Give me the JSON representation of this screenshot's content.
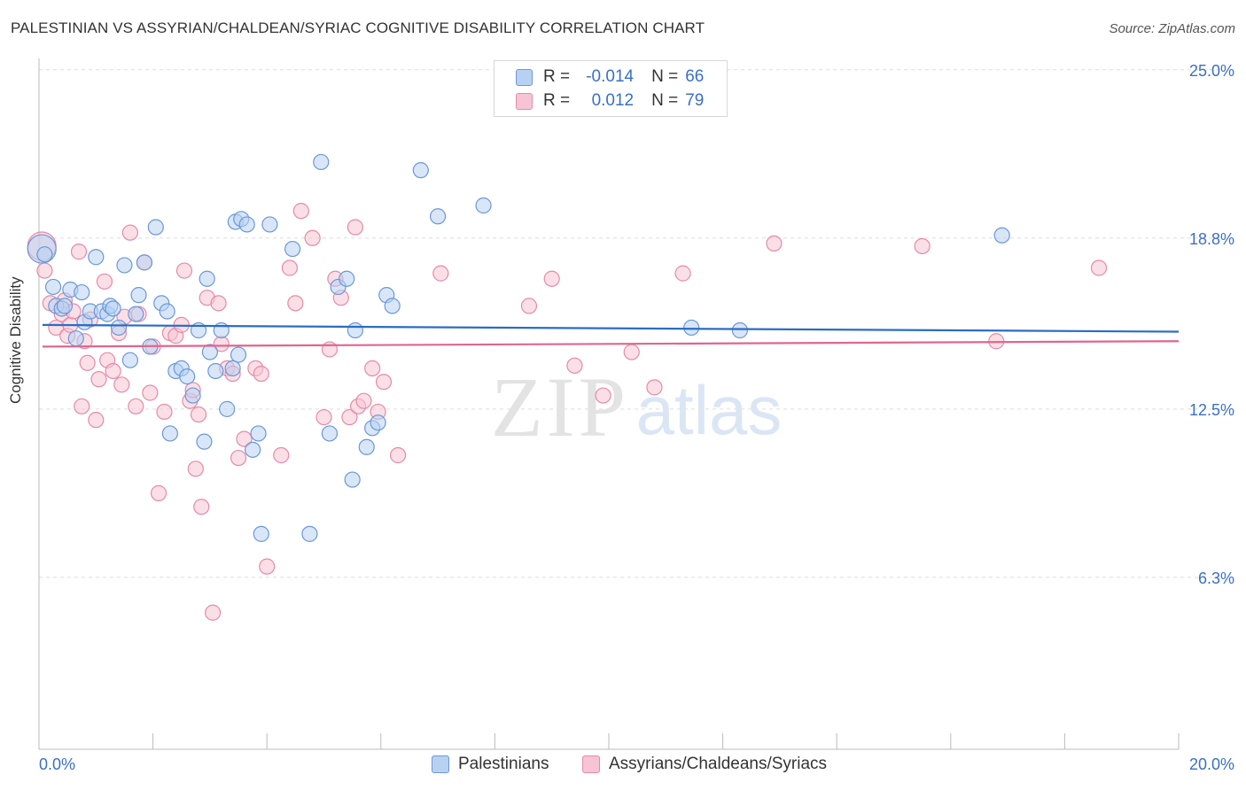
{
  "title": "PALESTINIAN VS ASSYRIAN/CHALDEAN/SYRIAC COGNITIVE DISABILITY CORRELATION CHART",
  "source": "Source: ZipAtlas.com",
  "watermark": {
    "zip": "ZIP",
    "atlas": "atlas"
  },
  "legend": {
    "r_label": "R =",
    "n_label": "N =",
    "series1": {
      "r": "-0.014",
      "n": "66"
    },
    "series2": {
      "r": "0.012",
      "n": "79"
    }
  },
  "colors": {
    "blue_fill": "#b8d1f3",
    "blue_edge": "#6b98d8",
    "blue_line": "#2b6cc4",
    "pink_fill": "#f6c4d4",
    "pink_edge": "#e78aa8",
    "pink_line": "#e0668e",
    "axis_text": "#3a6fc9",
    "grid": "#dddddd"
  },
  "chart_data": {
    "type": "scatter",
    "title": "PALESTINIAN VS ASSYRIAN/CHALDEAN/SYRIAC COGNITIVE DISABILITY CORRELATION CHART",
    "xlabel": "",
    "ylabel": "Cognitive Disability",
    "xlim": [
      0,
      20
    ],
    "ylim": [
      0,
      26
    ],
    "x_tick_labels": [
      "0.0%",
      "20.0%"
    ],
    "y_ticks": [
      6.3,
      12.5,
      18.8,
      25.0
    ],
    "y_tick_labels": [
      "6.3%",
      "12.5%",
      "18.8%",
      "25.0%"
    ],
    "grid": true,
    "legend_position": "top-center",
    "series": [
      {
        "name": "Palestinians",
        "r": -0.014,
        "n": 66,
        "trend": [
          [
            0,
            15.6
          ],
          [
            20,
            15.35
          ]
        ],
        "points": [
          [
            0.05,
            18.4
          ],
          [
            0.1,
            18.2
          ],
          [
            0.25,
            17.0
          ],
          [
            0.3,
            16.3
          ],
          [
            0.4,
            16.2
          ],
          [
            0.45,
            16.3
          ],
          [
            0.55,
            16.9
          ],
          [
            0.65,
            15.1
          ],
          [
            0.75,
            16.8
          ],
          [
            0.8,
            15.7
          ],
          [
            0.9,
            16.1
          ],
          [
            1.0,
            18.1
          ],
          [
            1.1,
            16.1
          ],
          [
            1.2,
            16.0
          ],
          [
            1.25,
            16.3
          ],
          [
            1.3,
            16.2
          ],
          [
            1.4,
            15.5
          ],
          [
            1.5,
            17.8
          ],
          [
            1.6,
            14.3
          ],
          [
            1.7,
            16.0
          ],
          [
            1.75,
            16.7
          ],
          [
            1.85,
            17.9
          ],
          [
            1.95,
            14.8
          ],
          [
            2.05,
            19.2
          ],
          [
            2.15,
            16.4
          ],
          [
            2.25,
            16.1
          ],
          [
            2.3,
            11.6
          ],
          [
            2.4,
            13.9
          ],
          [
            2.5,
            14.0
          ],
          [
            2.6,
            13.7
          ],
          [
            2.7,
            13.0
          ],
          [
            2.8,
            15.4
          ],
          [
            2.9,
            11.3
          ],
          [
            2.95,
            17.3
          ],
          [
            3.0,
            14.6
          ],
          [
            3.1,
            13.9
          ],
          [
            3.2,
            15.4
          ],
          [
            3.3,
            12.5
          ],
          [
            3.4,
            14.0
          ],
          [
            3.45,
            19.4
          ],
          [
            3.5,
            14.5
          ],
          [
            3.55,
            19.5
          ],
          [
            3.65,
            19.3
          ],
          [
            3.75,
            11.0
          ],
          [
            3.85,
            11.6
          ],
          [
            3.9,
            7.9
          ],
          [
            4.05,
            19.3
          ],
          [
            4.45,
            18.4
          ],
          [
            4.75,
            7.9
          ],
          [
            4.95,
            21.6
          ],
          [
            5.1,
            11.6
          ],
          [
            5.25,
            17.0
          ],
          [
            5.4,
            17.3
          ],
          [
            5.5,
            9.9
          ],
          [
            5.55,
            15.4
          ],
          [
            5.75,
            11.1
          ],
          [
            5.85,
            11.8
          ],
          [
            5.95,
            12.0
          ],
          [
            6.1,
            16.7
          ],
          [
            6.2,
            16.3
          ],
          [
            6.7,
            21.3
          ],
          [
            7.0,
            19.6
          ],
          [
            7.8,
            20.0
          ],
          [
            11.45,
            15.5
          ],
          [
            12.3,
            15.4
          ],
          [
            16.9,
            18.9
          ]
        ]
      },
      {
        "name": "Assyrians/Chaldeans/Syriacs",
        "r": 0.012,
        "n": 79,
        "trend": [
          [
            0,
            14.8
          ],
          [
            20,
            15.0
          ]
        ],
        "points": [
          [
            0.05,
            18.5
          ],
          [
            0.1,
            17.6
          ],
          [
            0.2,
            16.4
          ],
          [
            0.3,
            15.5
          ],
          [
            0.4,
            16.0
          ],
          [
            0.45,
            16.5
          ],
          [
            0.5,
            15.2
          ],
          [
            0.55,
            15.6
          ],
          [
            0.6,
            16.1
          ],
          [
            0.7,
            18.3
          ],
          [
            0.75,
            12.6
          ],
          [
            0.8,
            15.0
          ],
          [
            0.85,
            14.2
          ],
          [
            0.9,
            15.8
          ],
          [
            1.0,
            12.1
          ],
          [
            1.05,
            13.6
          ],
          [
            1.15,
            17.2
          ],
          [
            1.2,
            14.3
          ],
          [
            1.3,
            13.9
          ],
          [
            1.4,
            15.3
          ],
          [
            1.45,
            13.4
          ],
          [
            1.5,
            15.9
          ],
          [
            1.6,
            19.0
          ],
          [
            1.7,
            12.6
          ],
          [
            1.75,
            16.0
          ],
          [
            1.85,
            17.9
          ],
          [
            1.95,
            13.1
          ],
          [
            2.0,
            14.8
          ],
          [
            2.1,
            9.4
          ],
          [
            2.2,
            12.4
          ],
          [
            2.3,
            15.3
          ],
          [
            2.4,
            15.2
          ],
          [
            2.5,
            15.6
          ],
          [
            2.55,
            17.6
          ],
          [
            2.65,
            12.8
          ],
          [
            2.7,
            13.2
          ],
          [
            2.75,
            10.3
          ],
          [
            2.8,
            12.3
          ],
          [
            2.85,
            8.9
          ],
          [
            2.95,
            16.6
          ],
          [
            3.05,
            5.0
          ],
          [
            3.15,
            16.4
          ],
          [
            3.2,
            14.9
          ],
          [
            3.3,
            14.0
          ],
          [
            3.4,
            13.8
          ],
          [
            3.5,
            10.7
          ],
          [
            3.6,
            11.4
          ],
          [
            3.8,
            14.0
          ],
          [
            3.9,
            13.8
          ],
          [
            4.0,
            6.7
          ],
          [
            4.25,
            10.8
          ],
          [
            4.4,
            17.7
          ],
          [
            4.5,
            16.4
          ],
          [
            4.6,
            19.8
          ],
          [
            4.8,
            18.8
          ],
          [
            5.0,
            12.2
          ],
          [
            5.1,
            14.7
          ],
          [
            5.2,
            17.3
          ],
          [
            5.3,
            16.6
          ],
          [
            5.45,
            12.2
          ],
          [
            5.55,
            19.2
          ],
          [
            5.6,
            12.6
          ],
          [
            5.7,
            12.8
          ],
          [
            5.85,
            14.0
          ],
          [
            5.95,
            12.4
          ],
          [
            6.05,
            13.5
          ],
          [
            6.3,
            10.8
          ],
          [
            7.05,
            17.5
          ],
          [
            8.6,
            16.3
          ],
          [
            9.0,
            17.3
          ],
          [
            9.4,
            14.1
          ],
          [
            9.9,
            13.0
          ],
          [
            10.4,
            14.6
          ],
          [
            10.8,
            13.3
          ],
          [
            11.3,
            17.5
          ],
          [
            12.9,
            18.6
          ],
          [
            15.5,
            18.5
          ],
          [
            16.8,
            15.0
          ],
          [
            18.6,
            17.7
          ]
        ]
      }
    ]
  }
}
